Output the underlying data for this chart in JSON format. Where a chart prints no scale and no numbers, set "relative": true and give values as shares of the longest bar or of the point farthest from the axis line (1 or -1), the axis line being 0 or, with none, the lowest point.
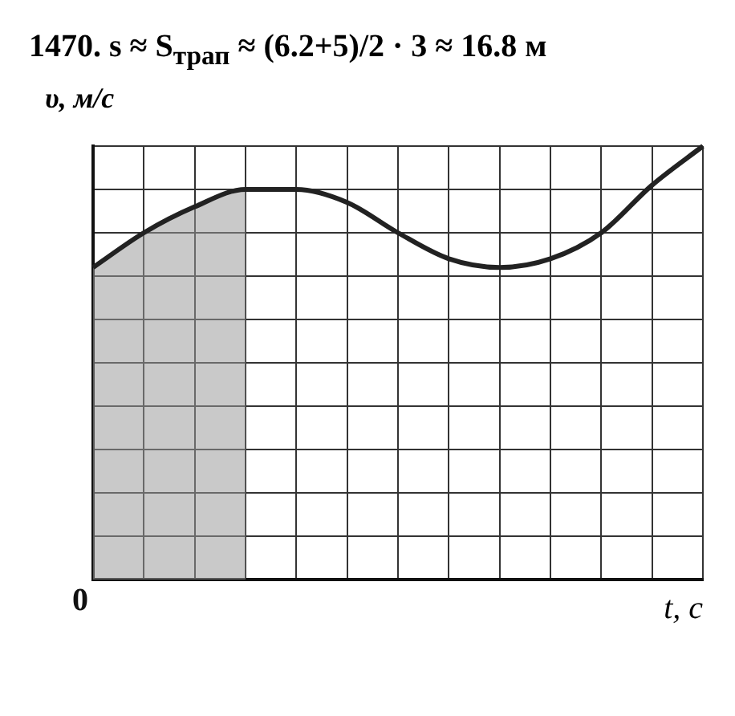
{
  "chart_data": {
    "type": "line",
    "title": "1470. s ≈ S$_{трап}$ ≈ (6.2+5)/2 · 3 ≈ 16.8 м",
    "xlabel": "t, с",
    "ylabel": "υ, м/с",
    "relative": true,
    "grid": true,
    "annotations": [
      "0"
    ],
    "categories": [
      null,
      null,
      null,
      null,
      null,
      null,
      null,
      null,
      null,
      null,
      null,
      null,
      null
    ],
    "series": [
      {
        "type": "line",
        "color": "#222222",
        "values": [
          0.72,
          0.8,
          0.86,
          0.9,
          0.9,
          0.87,
          0.8,
          0.74,
          0.72,
          0.74,
          0.8,
          0.91,
          1
        ]
      },
      {
        "type": "area",
        "color": "#999999",
        "values": [
          0.72,
          0.8,
          0.86,
          0.9,
          null,
          null,
          null,
          null,
          null,
          null,
          null,
          null,
          null
        ]
      }
    ]
  }
}
